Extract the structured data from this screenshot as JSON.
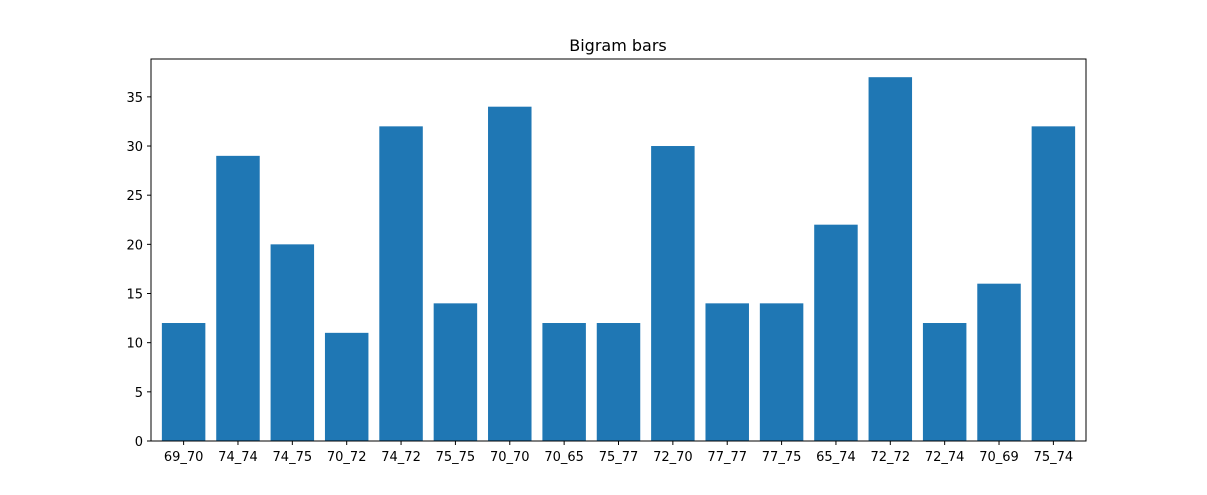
{
  "chart_data": {
    "type": "bar",
    "title": "Bigram bars",
    "xlabel": "",
    "ylabel": "",
    "categories": [
      "69_70",
      "74_74",
      "74_75",
      "70_72",
      "74_72",
      "75_75",
      "70_70",
      "70_65",
      "75_77",
      "72_70",
      "77_77",
      "77_75",
      "65_74",
      "72_72",
      "72_74",
      "70_69",
      "75_74"
    ],
    "values": [
      12,
      29,
      20,
      11,
      32,
      14,
      34,
      12,
      12,
      30,
      14,
      14,
      22,
      37,
      12,
      16,
      32
    ],
    "ylim": [
      0,
      38.85
    ],
    "yticks": [
      0,
      5,
      10,
      15,
      20,
      25,
      30,
      35
    ],
    "bar_color": "#1f77b4",
    "grid": false,
    "legend": "none"
  }
}
